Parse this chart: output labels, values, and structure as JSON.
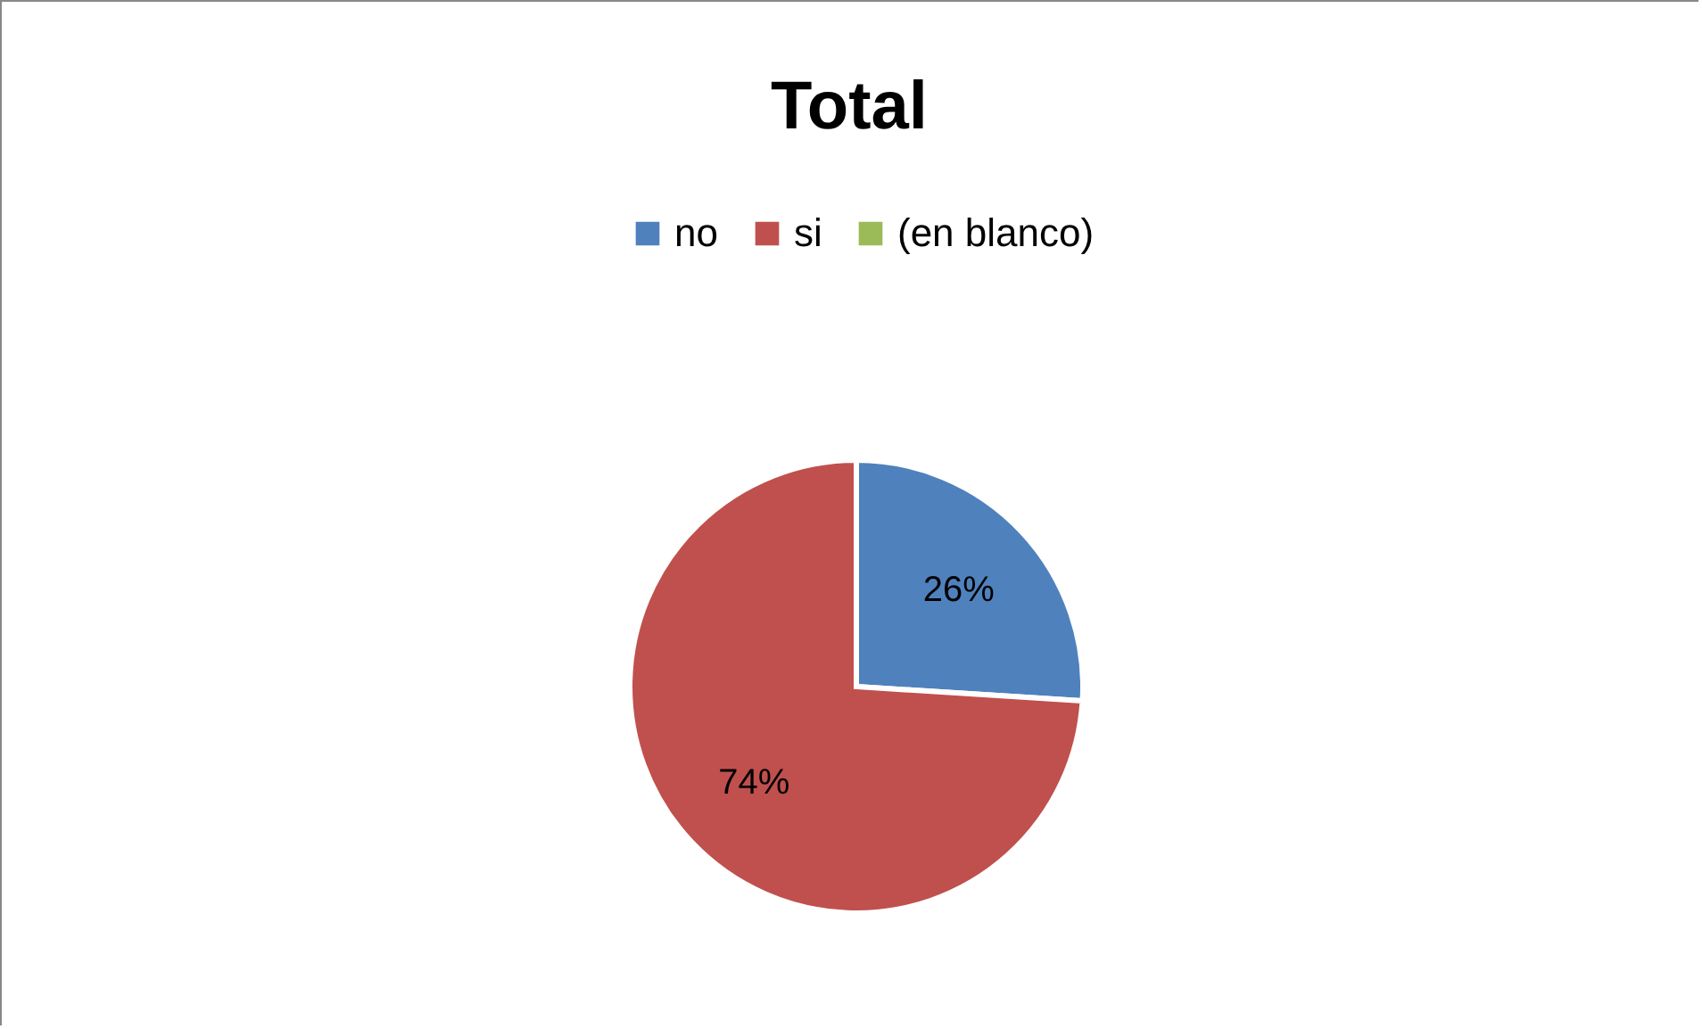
{
  "chart_data": {
    "type": "pie",
    "title": "Total",
    "categories": [
      "no",
      "si",
      "(en blanco)"
    ],
    "values": [
      26,
      74,
      0
    ],
    "colors": [
      "#4f81bd",
      "#c0504d",
      "#9bbb59"
    ],
    "value_labels": [
      "26%",
      "74%",
      null
    ],
    "legend": "top"
  }
}
